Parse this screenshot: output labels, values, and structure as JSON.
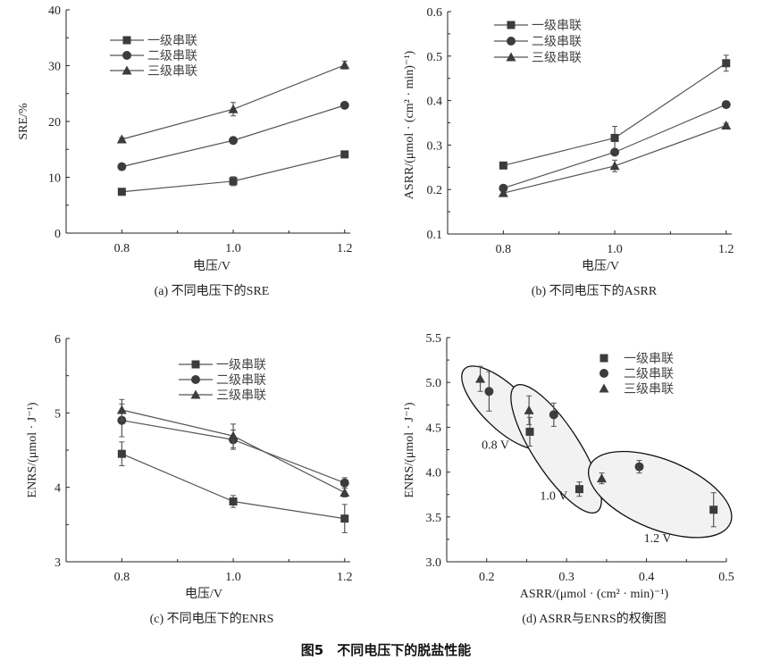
{
  "figure_title": "图5　不同电压下的脱盐性能",
  "colors": {
    "line": "#555555",
    "marker": "#3c3c3c",
    "ellipse_fill": "#f2f2f2"
  },
  "chart_data": [
    {
      "type": "line",
      "caption": "(a) 不同电压下的SRE",
      "xlabel": "电压/V",
      "ylabel": "SRE/%",
      "xlim": [
        0.7,
        1.21
      ],
      "ylim": [
        0,
        40
      ],
      "xticks": [
        "0.8",
        "1.0",
        "1.2"
      ],
      "yticks": [
        "0",
        "10",
        "20",
        "30",
        "40"
      ],
      "legend": "top-left",
      "x": [
        0.8,
        1.0,
        1.2
      ],
      "series": [
        {
          "name": "一级串联",
          "marker": "square",
          "values": [
            7.4,
            9.3,
            14.1
          ],
          "errors": [
            0.3,
            0.8,
            0.4
          ]
        },
        {
          "name": "二级串联",
          "marker": "circle",
          "values": [
            11.9,
            16.6,
            22.9
          ],
          "errors": [
            0.3,
            0.4,
            0.4
          ]
        },
        {
          "name": "三级串联",
          "marker": "triangle",
          "values": [
            16.8,
            22.2,
            30.1
          ],
          "errors": [
            0.3,
            1.2,
            0.7
          ]
        }
      ]
    },
    {
      "type": "line",
      "caption": "(b) 不同电压下的ASRR",
      "xlabel": "电压/V",
      "ylabel": "ASRR/(μmol · (cm² · min)⁻¹)",
      "xlim": [
        0.7,
        1.21
      ],
      "ylim": [
        0.1,
        0.6
      ],
      "xticks": [
        "0.8",
        "1.0",
        "1.2"
      ],
      "yticks": [
        "0.1",
        "0.2",
        "0.3",
        "0.4",
        "0.5",
        "0.6"
      ],
      "legend": "top-left",
      "x": [
        0.8,
        1.0,
        1.2
      ],
      "series": [
        {
          "name": "一级串联",
          "marker": "square",
          "values": [
            0.254,
            0.316,
            0.484
          ],
          "errors": [
            0.004,
            0.026,
            0.018
          ]
        },
        {
          "name": "二级串联",
          "marker": "circle",
          "values": [
            0.203,
            0.284,
            0.391
          ],
          "errors": [
            0.004,
            0.005,
            0.004
          ]
        },
        {
          "name": "三级串联",
          "marker": "triangle",
          "values": [
            0.192,
            0.253,
            0.344
          ],
          "errors": [
            0.004,
            0.013,
            0.005
          ]
        }
      ]
    },
    {
      "type": "line",
      "caption": "(c) 不同电压下的ENRS",
      "xlabel": "电压/V",
      "ylabel": "ENRS/(μmol · J⁻¹)",
      "xlim": [
        0.7,
        1.21
      ],
      "ylim": [
        3,
        6
      ],
      "xticks": [
        "0.8",
        "1.0",
        "1.2"
      ],
      "yticks": [
        "3",
        "4",
        "5",
        "6"
      ],
      "legend": "top-center",
      "x": [
        0.8,
        1.0,
        1.2
      ],
      "series": [
        {
          "name": "一级串联",
          "marker": "square",
          "values": [
            4.45,
            3.81,
            3.58
          ],
          "errors": [
            0.16,
            0.08,
            0.19
          ]
        },
        {
          "name": "二级串联",
          "marker": "circle",
          "values": [
            4.9,
            4.64,
            4.06
          ],
          "errors": [
            0.22,
            0.13,
            0.07
          ]
        },
        {
          "name": "三级串联",
          "marker": "triangle",
          "values": [
            5.04,
            4.69,
            3.93
          ],
          "errors": [
            0.14,
            0.16,
            0.06
          ]
        }
      ]
    },
    {
      "type": "scatter",
      "caption": "(d) ASRR与ENRS的权衡图",
      "xlabel": "ASRR/(μmol · (cm² · min)⁻¹)",
      "ylabel": "ENRS/(μmol · J⁻¹)",
      "xlim": [
        0.15,
        0.5
      ],
      "ylim": [
        3.0,
        5.5
      ],
      "xticks": [
        "0.2",
        "0.3",
        "0.4",
        "0.5"
      ],
      "yticks": [
        "3.0",
        "3.5",
        "4.0",
        "4.5",
        "5.0",
        "5.5"
      ],
      "legend": "top-right",
      "groups": [
        "0.8 V",
        "1.0 V",
        "1.2 V"
      ],
      "series": [
        {
          "name": "一级串联",
          "marker": "square",
          "x": [
            0.254,
            0.316,
            0.484
          ],
          "y": [
            4.45,
            3.81,
            3.58
          ],
          "errors": [
            0.16,
            0.08,
            0.19
          ]
        },
        {
          "name": "二级串联",
          "marker": "circle",
          "x": [
            0.203,
            0.284,
            0.391
          ],
          "y": [
            4.9,
            4.64,
            4.06
          ],
          "errors": [
            0.22,
            0.13,
            0.07
          ]
        },
        {
          "name": "三级串联",
          "marker": "triangle",
          "x": [
            0.192,
            0.253,
            0.344
          ],
          "y": [
            5.04,
            4.69,
            3.93
          ],
          "errors": [
            0.14,
            0.16,
            0.06
          ]
        }
      ]
    }
  ]
}
